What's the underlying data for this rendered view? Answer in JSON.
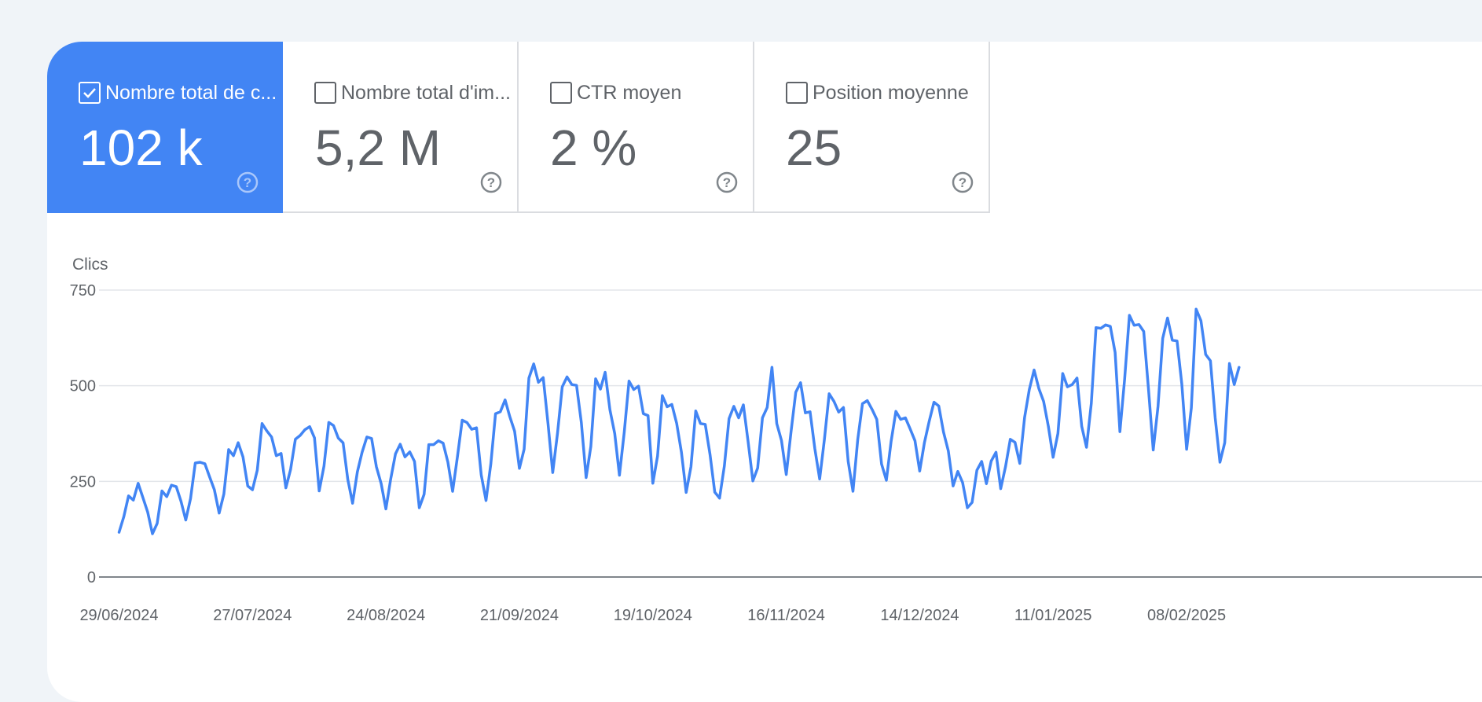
{
  "metrics": [
    {
      "label": "Nombre total de c...",
      "value": "102 k",
      "selected": true
    },
    {
      "label": "Nombre total d'im...",
      "value": "5,2 M",
      "selected": false
    },
    {
      "label": "CTR moyen",
      "value": "2 %",
      "selected": false
    },
    {
      "label": "Position moyenne",
      "value": "25",
      "selected": false
    }
  ],
  "colors": {
    "accent": "#4285f4",
    "line": "#4285f4",
    "grid": "#e3e6ea",
    "text": "#5f6368"
  },
  "chart_data": {
    "type": "line",
    "title": "",
    "ylabel": "Clics",
    "xlabel": "",
    "ylim": [
      0,
      750
    ],
    "yticks": [
      0,
      250,
      500,
      750
    ],
    "x_start": "29/06/2024",
    "x_tick_labels": [
      "29/06/2024",
      "27/07/2024",
      "24/08/2024",
      "21/09/2024",
      "19/10/2024",
      "16/11/2024",
      "14/12/2024",
      "11/01/2025",
      "08/02/2025"
    ],
    "grid": true,
    "series": [
      {
        "name": "",
        "values": [
          117,
          158,
          212,
          201,
          245,
          208,
          170,
          113,
          140,
          225,
          210,
          240,
          236,
          198,
          149,
          205,
          298,
          300,
          296,
          262,
          228,
          167,
          217,
          333,
          317,
          351,
          314,
          238,
          228,
          279,
          401,
          382,
          366,
          317,
          323,
          233,
          281,
          360,
          370,
          385,
          393,
          364,
          225,
          290,
          404,
          396,
          363,
          351,
          255,
          193,
          275,
          326,
          366,
          362,
          288,
          244,
          178,
          256,
          322,
          347,
          314,
          327,
          302,
          181,
          216,
          346,
          346,
          356,
          350,
          300,
          224,
          314,
          410,
          404,
          386,
          390,
          267,
          200,
          295,
          427,
          432,
          463,
          419,
          381,
          284,
          334,
          520,
          557,
          509,
          521,
          401,
          273,
          376,
          497,
          523,
          503,
          501,
          404,
          260,
          341,
          518,
          491,
          535,
          437,
          375,
          266,
          378,
          512,
          490,
          499,
          427,
          422,
          245,
          316,
          474,
          445,
          451,
          402,
          326,
          221,
          288,
          434,
          401,
          399,
          320,
          222,
          206,
          290,
          414,
          446,
          416,
          450,
          353,
          251,
          285,
          416,
          443,
          548,
          401,
          357,
          268,
          380,
          483,
          508,
          429,
          432,
          335,
          256,
          359,
          479,
          459,
          431,
          443,
          302,
          224,
          360,
          453,
          461,
          438,
          412,
          295,
          253,
          354,
          433,
          412,
          416,
          387,
          356,
          277,
          352,
          407,
          457,
          447,
          379,
          330,
          238,
          276,
          247,
          181,
          195,
          279,
          302,
          244,
          303,
          326,
          231,
          288,
          360,
          352,
          297,
          417,
          490,
          541,
          493,
          459,
          393,
          313,
          375,
          532,
          497,
          503,
          520,
          394,
          339,
          454,
          652,
          650,
          659,
          655,
          587,
          380,
          517,
          684,
          658,
          660,
          642,
          493,
          332,
          446,
          624,
          677,
          619,
          617,
          504,
          334,
          442,
          700,
          670,
          582,
          565,
          415,
          300,
          351,
          558,
          503,
          548
        ]
      }
    ]
  }
}
